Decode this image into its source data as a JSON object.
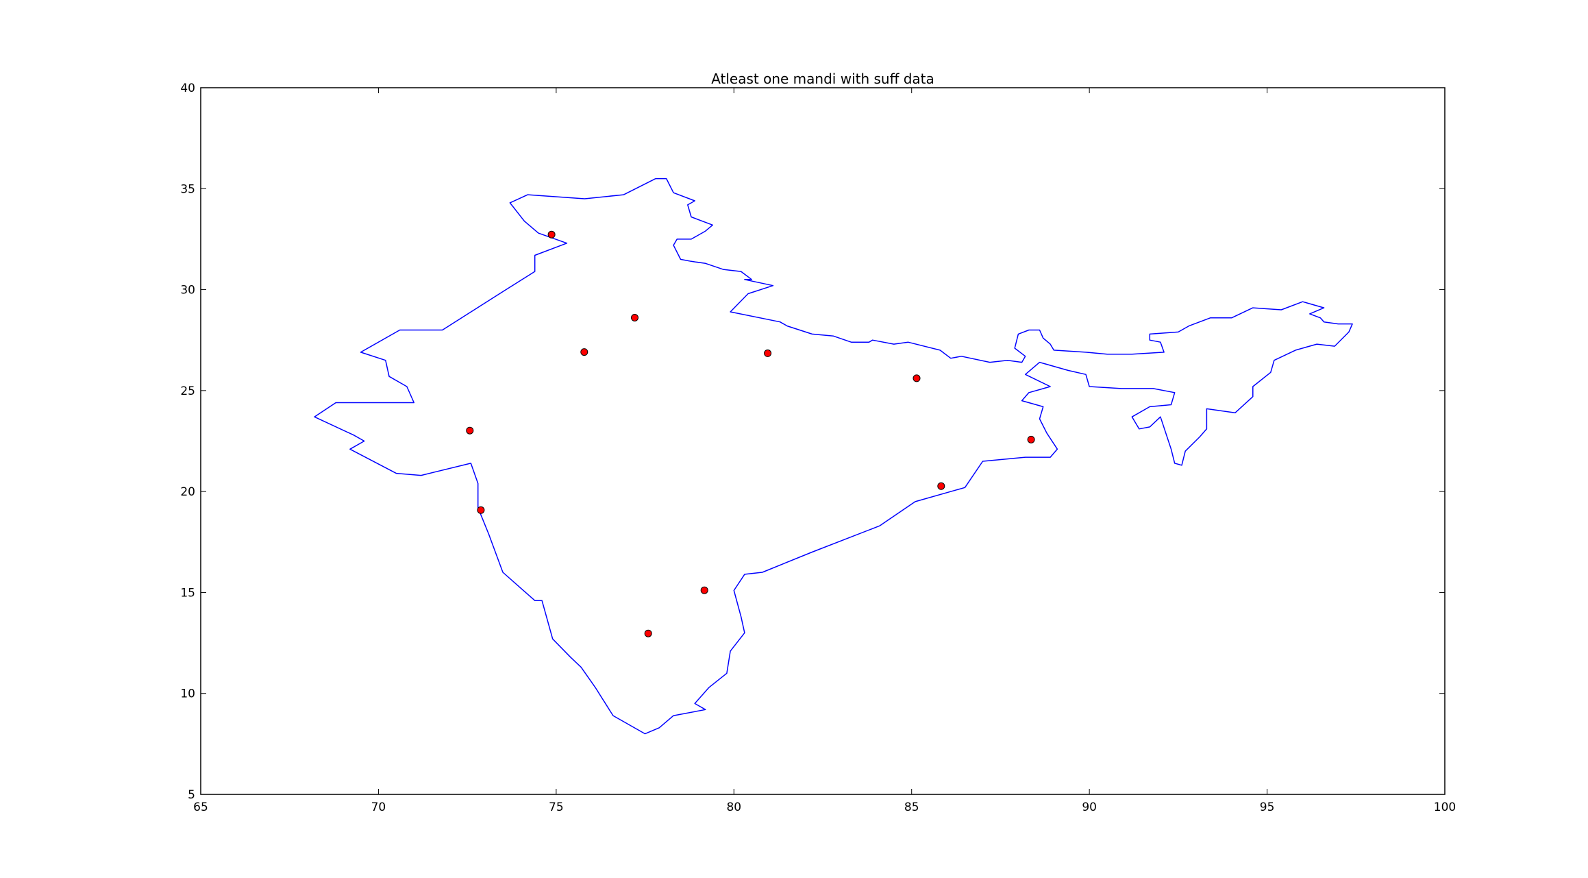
{
  "chart_data": {
    "type": "scatter",
    "title": "Atleast one mandi with suff data",
    "xlabel": "",
    "ylabel": "",
    "xlim": [
      65,
      100
    ],
    "ylim": [
      5,
      40
    ],
    "x_ticks": [
      65,
      70,
      75,
      80,
      85,
      90,
      95,
      100
    ],
    "y_ticks": [
      5,
      10,
      15,
      20,
      25,
      30,
      35,
      40
    ],
    "grid": false,
    "outline_color": "#0000ff",
    "marker_color": "#ff0000",
    "points": [
      {
        "x": 74.87,
        "y": 32.73
      },
      {
        "x": 77.21,
        "y": 28.61
      },
      {
        "x": 75.79,
        "y": 26.91
      },
      {
        "x": 80.95,
        "y": 26.85
      },
      {
        "x": 85.14,
        "y": 25.61
      },
      {
        "x": 72.57,
        "y": 23.02
      },
      {
        "x": 88.36,
        "y": 22.57
      },
      {
        "x": 85.83,
        "y": 20.27
      },
      {
        "x": 72.88,
        "y": 19.08
      },
      {
        "x": 79.17,
        "y": 15.11
      },
      {
        "x": 77.59,
        "y": 12.97
      }
    ],
    "outline_lon_lat": [
      [
        77.8,
        35.5
      ],
      [
        78.1,
        35.5
      ],
      [
        78.3,
        34.8
      ],
      [
        78.9,
        34.4
      ],
      [
        78.7,
        34.2
      ],
      [
        78.8,
        33.6
      ],
      [
        79.4,
        33.2
      ],
      [
        79.2,
        32.9
      ],
      [
        78.8,
        32.5
      ],
      [
        78.4,
        32.5
      ],
      [
        78.3,
        32.2
      ],
      [
        78.5,
        31.5
      ],
      [
        78.8,
        31.4
      ],
      [
        79.2,
        31.3
      ],
      [
        79.7,
        31.0
      ],
      [
        80.2,
        30.9
      ],
      [
        80.5,
        30.5
      ],
      [
        80.3,
        30.5
      ],
      [
        81.1,
        30.2
      ],
      [
        80.4,
        29.8
      ],
      [
        79.9,
        28.9
      ],
      [
        81.3,
        28.4
      ],
      [
        81.5,
        28.2
      ],
      [
        82.2,
        27.8
      ],
      [
        82.8,
        27.7
      ],
      [
        83.3,
        27.4
      ],
      [
        83.8,
        27.4
      ],
      [
        83.9,
        27.5
      ],
      [
        84.5,
        27.3
      ],
      [
        84.9,
        27.4
      ],
      [
        85.8,
        27.0
      ],
      [
        86.1,
        26.6
      ],
      [
        86.4,
        26.7
      ],
      [
        87.2,
        26.4
      ],
      [
        87.7,
        26.5
      ],
      [
        88.1,
        26.4
      ],
      [
        88.2,
        26.7
      ],
      [
        87.9,
        27.1
      ],
      [
        88.0,
        27.8
      ],
      [
        88.3,
        28.0
      ],
      [
        88.6,
        28.0
      ],
      [
        88.7,
        27.6
      ],
      [
        88.9,
        27.3
      ],
      [
        89.0,
        27.0
      ],
      [
        89.9,
        26.9
      ],
      [
        90.5,
        26.8
      ],
      [
        91.2,
        26.8
      ],
      [
        92.1,
        26.9
      ],
      [
        92.0,
        27.4
      ],
      [
        91.7,
        27.5
      ],
      [
        91.7,
        27.8
      ],
      [
        92.5,
        27.9
      ],
      [
        92.8,
        28.2
      ],
      [
        93.4,
        28.6
      ],
      [
        94.0,
        28.6
      ],
      [
        94.6,
        29.1
      ],
      [
        95.4,
        29.0
      ],
      [
        96.0,
        29.4
      ],
      [
        96.6,
        29.1
      ],
      [
        96.2,
        28.8
      ],
      [
        96.5,
        28.6
      ],
      [
        96.6,
        28.4
      ],
      [
        97.0,
        28.3
      ],
      [
        97.4,
        28.3
      ],
      [
        97.3,
        27.9
      ],
      [
        96.9,
        27.2
      ],
      [
        96.4,
        27.3
      ],
      [
        95.8,
        27.0
      ],
      [
        95.2,
        26.5
      ],
      [
        95.1,
        25.9
      ],
      [
        94.6,
        25.2
      ],
      [
        94.6,
        24.7
      ],
      [
        94.1,
        23.9
      ],
      [
        93.3,
        24.1
      ],
      [
        93.3,
        23.1
      ],
      [
        93.1,
        22.7
      ],
      [
        92.7,
        22.0
      ],
      [
        92.6,
        21.3
      ],
      [
        92.4,
        21.4
      ],
      [
        92.3,
        22.1
      ],
      [
        92.0,
        23.7
      ],
      [
        91.7,
        23.2
      ],
      [
        91.4,
        23.1
      ],
      [
        91.2,
        23.7
      ],
      [
        91.7,
        24.2
      ],
      [
        92.3,
        24.3
      ],
      [
        92.4,
        24.9
      ],
      [
        91.8,
        25.1
      ],
      [
        90.9,
        25.1
      ],
      [
        90.0,
        25.2
      ],
      [
        89.9,
        25.8
      ],
      [
        89.4,
        26.0
      ],
      [
        89.0,
        26.2
      ],
      [
        88.6,
        26.4
      ],
      [
        88.2,
        25.8
      ],
      [
        88.9,
        25.2
      ],
      [
        88.3,
        24.9
      ],
      [
        88.1,
        24.5
      ],
      [
        88.7,
        24.2
      ],
      [
        88.6,
        23.6
      ],
      [
        88.8,
        22.9
      ],
      [
        89.1,
        22.1
      ],
      [
        88.9,
        21.7
      ],
      [
        88.2,
        21.7
      ],
      [
        87.0,
        21.5
      ],
      [
        86.5,
        20.2
      ],
      [
        85.1,
        19.5
      ],
      [
        84.1,
        18.3
      ],
      [
        82.2,
        17.0
      ],
      [
        80.8,
        16.0
      ],
      [
        80.3,
        15.9
      ],
      [
        80.0,
        15.1
      ],
      [
        80.2,
        13.8
      ],
      [
        80.3,
        13.0
      ],
      [
        79.9,
        12.1
      ],
      [
        79.8,
        11.0
      ],
      [
        79.3,
        10.3
      ],
      [
        78.9,
        9.5
      ],
      [
        79.2,
        9.2
      ],
      [
        78.3,
        8.9
      ],
      [
        77.9,
        8.3
      ],
      [
        77.5,
        8.0
      ],
      [
        76.6,
        8.9
      ],
      [
        76.1,
        10.3
      ],
      [
        75.7,
        11.3
      ],
      [
        75.4,
        11.8
      ],
      [
        74.9,
        12.7
      ],
      [
        74.6,
        14.6
      ],
      [
        74.4,
        14.6
      ],
      [
        73.5,
        16.0
      ],
      [
        73.1,
        17.9
      ],
      [
        72.8,
        19.2
      ],
      [
        72.8,
        20.4
      ],
      [
        72.6,
        21.4
      ],
      [
        71.2,
        20.8
      ],
      [
        70.5,
        20.9
      ],
      [
        69.2,
        22.1
      ],
      [
        69.6,
        22.5
      ],
      [
        69.3,
        22.8
      ],
      [
        68.2,
        23.7
      ],
      [
        68.8,
        24.4
      ],
      [
        71.0,
        24.4
      ],
      [
        70.8,
        25.2
      ],
      [
        70.3,
        25.7
      ],
      [
        70.2,
        26.5
      ],
      [
        69.5,
        26.9
      ],
      [
        70.6,
        28.0
      ],
      [
        71.8,
        28.0
      ],
      [
        73.5,
        29.9
      ],
      [
        74.4,
        30.9
      ],
      [
        74.4,
        31.7
      ],
      [
        75.3,
        32.3
      ],
      [
        74.5,
        32.8
      ],
      [
        74.1,
        33.4
      ],
      [
        73.7,
        34.3
      ],
      [
        74.2,
        34.7
      ],
      [
        75.8,
        34.5
      ],
      [
        76.9,
        34.7
      ],
      [
        77.8,
        35.5
      ]
    ]
  }
}
